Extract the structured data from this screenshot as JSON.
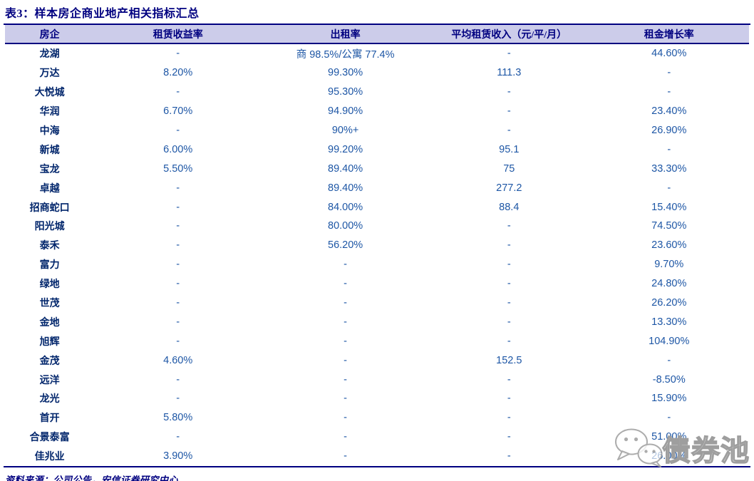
{
  "page": {
    "title": "表3：样本房企商业地产相关指标汇总",
    "source_note": "资料来源：公司公告，安信证券研究中心"
  },
  "table": {
    "columns": [
      "房企",
      "租赁收益率",
      "出租率",
      "平均租赁收入（元/平/月）",
      "租金增长率"
    ],
    "rows": [
      [
        "龙湖",
        "-",
        "商 98.5%/公寓 77.4%",
        "-",
        "44.60%"
      ],
      [
        "万达",
        "8.20%",
        "99.30%",
        "111.3",
        "-"
      ],
      [
        "大悦城",
        "-",
        "95.30%",
        "-",
        "-"
      ],
      [
        "华润",
        "6.70%",
        "94.90%",
        "-",
        "23.40%"
      ],
      [
        "中海",
        "-",
        "90%+",
        "-",
        "26.90%"
      ],
      [
        "新城",
        "6.00%",
        "99.20%",
        "95.1",
        "-"
      ],
      [
        "宝龙",
        "5.50%",
        "89.40%",
        "75",
        "33.30%"
      ],
      [
        "卓越",
        "-",
        "89.40%",
        "277.2",
        "-"
      ],
      [
        "招商蛇口",
        "-",
        "84.00%",
        "88.4",
        "15.40%"
      ],
      [
        "阳光城",
        "-",
        "80.00%",
        "-",
        "74.50%"
      ],
      [
        "泰禾",
        "-",
        "56.20%",
        "-",
        "23.60%"
      ],
      [
        "富力",
        "-",
        "-",
        "-",
        "9.70%"
      ],
      [
        "绿地",
        "-",
        "-",
        "-",
        "24.80%"
      ],
      [
        "世茂",
        "-",
        "-",
        "-",
        "26.20%"
      ],
      [
        "金地",
        "-",
        "-",
        "-",
        "13.30%"
      ],
      [
        "旭辉",
        "-",
        "-",
        "-",
        "104.90%"
      ],
      [
        "金茂",
        "4.60%",
        "-",
        "152.5",
        "-"
      ],
      [
        "远洋",
        "-",
        "-",
        "-",
        "-8.50%"
      ],
      [
        "龙光",
        "-",
        "-",
        "-",
        "15.90%"
      ],
      [
        "首开",
        "5.80%",
        "-",
        "-",
        "-"
      ],
      [
        "合景泰富",
        "-",
        "-",
        "-",
        "51.00%"
      ],
      [
        "佳兆业",
        "3.90%",
        "-",
        "-",
        "26.00%"
      ]
    ]
  },
  "watermark": {
    "text": "债券池",
    "icon": "wechat-icon"
  },
  "colors": {
    "header_bg": "#CCCCEA",
    "navy": "#000080",
    "company_navy": "#00256B",
    "value_blue": "#1D56A5",
    "watermark_gray": "#9E9E9E"
  }
}
